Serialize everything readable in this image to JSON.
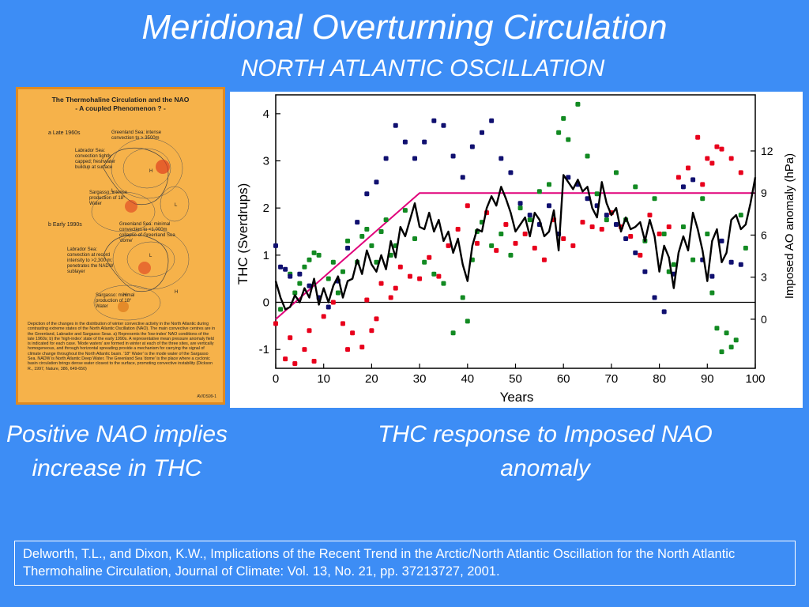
{
  "slide": {
    "title": "Meridional Overturning Circulation",
    "subtitle": "NORTH ATLANTIC OSCILLATION",
    "left_caption": "Positive NAO implies increase in THC",
    "right_caption": "THC response to  Imposed NAO anomaly",
    "reference": "Delworth, T.L., and Dixon, K.W., Implications of the Recent Trend in the Arctic/North Atlantic Oscillation for the  North Atlantic Thermohaline Circulation, Journal of Climate: Vol. 13, No. 21, pp. 37213727, 2001."
  },
  "poster": {
    "title_line1": "The Thermohaline Circulation and the NAO",
    "title_line2": "- A coupled Phenomenon ? -",
    "panel_a_label": "a  Late 1960s",
    "panel_a_greenland": "Greenland Sea: intense convection to > 3500m",
    "panel_a_labrador": "Labrador Sea: convection tightly capped; freshwater buildup at surface",
    "panel_a_sargasso": "Sargasso: intense production of 18° Water",
    "panel_b_label": "b  Early 1990s",
    "panel_b_greenland": "Greenland Sea: minimal convection to <1,000m collapse of Greenland Sea 'dome'",
    "panel_b_labrador": "Labrador Sea: convection at record intensity to >2,300 m; penetrates the NADW sublayer",
    "panel_b_sargasso": "Sargasso: minimal production of 18° Water",
    "description": "Depiction of the changes in the distribution of winter convective activity in the North Atlantic during contrasting extreme states of the North Atlantic Oscillation (NAO). The main convective centres are in the Greenland, Labrador and Sargasso Seas. a) Represents the 'low-index' NAO conditions of the late 1960s; b) the 'high-index' state of the early 1990s. A representative mean pressure anomaly field is indicated for each case. 'Mode waters' are formed in winter at each of the three sites, are vertically homogeneous, and through horizontal spreading provide a mechanism for carrying the signal of climate change throughout the North Atlantic basin. '18° Water' is the mode water of the Sargasso Sea. NADW is North Atlantic Deep Water. The Greenland Sea 'dome' is the place where a cyclonic basin circulation brings dense water closest to the surface, promoting convective instability (Dickson R., 1997, Nature, 386, 649-650)",
    "code": "AV/DS99-1",
    "map_a_high": "H",
    "map_a_low1": "L",
    "map_a_low2": "L",
    "map_b_low": "L",
    "map_b_high1": "H",
    "map_b_high2": "H"
  },
  "chart_data": {
    "type": "line",
    "xlabel": "Years",
    "ylabel": "THC (Sverdrups)",
    "y2label": "Imposed AO anomaly (hPa)",
    "xlim": [
      0,
      100
    ],
    "ylim": [
      -1.4,
      4.4
    ],
    "y2lim": [
      -3.5,
      16
    ],
    "xticks": [
      "0",
      "10",
      "20",
      "30",
      "40",
      "50",
      "60",
      "70",
      "80",
      "90",
      "100"
    ],
    "yticks": [
      "-1",
      "0",
      "1",
      "2",
      "3",
      "4"
    ],
    "y2ticks": [
      "0",
      "3",
      "6",
      "9",
      "12"
    ],
    "colors": {
      "thc": "#000000",
      "forcing": "#e0007a",
      "red": "#e8001c",
      "green": "#128a22",
      "navy": "#101070"
    },
    "imposed_anomaly": {
      "x": [
        0,
        30,
        100
      ],
      "y": [
        0,
        9,
        9
      ]
    },
    "thc_line": {
      "x": [
        0,
        1,
        2,
        3,
        4,
        5,
        6,
        7,
        8,
        9,
        10,
        11,
        12,
        13,
        14,
        15,
        16,
        17,
        18,
        19,
        20,
        21,
        22,
        23,
        24,
        25,
        26,
        27,
        28,
        29,
        30,
        31,
        32,
        33,
        34,
        35,
        36,
        37,
        38,
        39,
        40,
        41,
        42,
        43,
        44,
        45,
        46,
        47,
        48,
        49,
        50,
        51,
        52,
        53,
        54,
        55,
        56,
        57,
        58,
        59,
        60,
        61,
        62,
        63,
        64,
        65,
        66,
        67,
        68,
        69,
        70,
        71,
        72,
        73,
        74,
        75,
        76,
        77,
        78,
        79,
        80,
        81,
        82,
        83,
        84,
        85,
        86,
        87,
        88,
        89,
        90,
        91,
        92,
        93,
        94,
        95,
        96,
        97,
        98,
        99,
        100
      ],
      "y": [
        0.45,
        0.1,
        -0.15,
        -0.1,
        0.15,
        0.0,
        0.3,
        0.1,
        0.5,
        -0.05,
        0.3,
        0.0,
        0.35,
        0.55,
        0.1,
        0.45,
        0.5,
        0.9,
        0.6,
        1.1,
        0.8,
        0.65,
        1.0,
        0.7,
        1.3,
        0.95,
        1.6,
        1.4,
        1.75,
        2.1,
        1.6,
        1.55,
        1.9,
        1.5,
        1.75,
        1.3,
        1.5,
        1.05,
        1.35,
        0.8,
        0.45,
        1.2,
        1.55,
        1.5,
        2.0,
        2.25,
        2.05,
        2.45,
        2.2,
        1.9,
        1.5,
        1.65,
        1.8,
        1.4,
        1.9,
        1.75,
        1.4,
        1.5,
        1.95,
        1.1,
        2.7,
        2.55,
        2.4,
        2.6,
        2.35,
        2.45,
        2.0,
        1.8,
        2.55,
        2.1,
        1.85,
        2.0,
        1.5,
        1.8,
        1.55,
        1.6,
        1.7,
        1.3,
        1.75,
        1.4,
        0.65,
        1.2,
        0.95,
        0.3,
        1.05,
        1.4,
        1.1,
        1.9,
        1.55,
        1.1,
        0.45,
        1.3,
        1.55,
        0.85,
        1.05,
        1.75,
        1.85,
        1.55,
        1.65,
        2.1,
        2.65
      ]
    },
    "scatter_red": {
      "x": [
        0,
        2,
        3,
        4,
        6,
        7,
        8,
        10,
        12,
        14,
        15,
        16,
        18,
        19,
        20,
        21,
        22,
        24,
        25,
        26,
        28,
        30,
        32,
        34,
        36,
        38,
        40,
        42,
        44,
        46,
        48,
        50,
        52,
        54,
        56,
        58,
        60,
        62,
        64,
        66,
        68,
        70,
        72,
        74,
        76,
        78,
        80,
        82,
        84,
        86,
        88,
        89,
        90,
        91,
        92,
        93,
        95,
        97
      ],
      "y": [
        -0.45,
        -1.2,
        -0.75,
        -1.3,
        -1.0,
        -0.6,
        -1.25,
        -0.3,
        0.0,
        -0.45,
        -1.0,
        -0.65,
        -0.95,
        0.05,
        -0.6,
        -0.35,
        0.4,
        0.1,
        0.3,
        0.75,
        0.55,
        0.5,
        0.95,
        0.55,
        1.2,
        1.55,
        2.05,
        1.25,
        1.9,
        1.1,
        1.65,
        1.25,
        1.45,
        1.15,
        0.9,
        1.75,
        1.35,
        1.2,
        1.7,
        1.6,
        1.55,
        1.9,
        1.6,
        1.4,
        1.0,
        1.85,
        1.45,
        1.6,
        2.65,
        2.85,
        3.5,
        2.5,
        3.05,
        2.95,
        3.3,
        3.25,
        3.05,
        2.75
      ]
    },
    "scatter_green": {
      "x": [
        1,
        3,
        4,
        5,
        6,
        7,
        8,
        9,
        11,
        12,
        13,
        14,
        15,
        17,
        18,
        19,
        20,
        21,
        22,
        23,
        24,
        25,
        27,
        29,
        31,
        33,
        35,
        37,
        39,
        40,
        41,
        42,
        43,
        45,
        47,
        49,
        51,
        53,
        55,
        57,
        59,
        60,
        61,
        63,
        65,
        67,
        69,
        71,
        73,
        75,
        77,
        79,
        81,
        82,
        83,
        85,
        87,
        89,
        90,
        91,
        92,
        93,
        94,
        95,
        96,
        97,
        98
      ],
      "y": [
        -0.15,
        0.6,
        0.2,
        0.4,
        0.75,
        0.9,
        1.05,
        1.0,
        0.5,
        0.85,
        0.2,
        0.65,
        1.3,
        0.85,
        1.4,
        1.55,
        1.2,
        0.85,
        1.5,
        1.75,
        1.0,
        1.2,
        1.95,
        1.35,
        0.85,
        0.6,
        0.4,
        -0.65,
        0.1,
        -0.4,
        0.9,
        1.5,
        1.7,
        1.2,
        1.45,
        1.0,
        2.0,
        1.75,
        2.35,
        2.5,
        3.6,
        3.9,
        3.45,
        4.2,
        3.1,
        2.3,
        1.75,
        2.75,
        1.75,
        2.45,
        1.3,
        2.2,
        1.45,
        0.65,
        0.8,
        1.6,
        0.9,
        2.2,
        1.45,
        0.2,
        -0.55,
        -1.05,
        -0.65,
        -0.95,
        -0.8,
        1.85,
        1.15
      ]
    },
    "scatter_navy": {
      "x": [
        0,
        1,
        2,
        3,
        5,
        7,
        9,
        11,
        13,
        15,
        17,
        19,
        21,
        23,
        25,
        27,
        29,
        31,
        33,
        35,
        37,
        39,
        41,
        43,
        45,
        47,
        49,
        51,
        53,
        55,
        57,
        59,
        61,
        63,
        65,
        67,
        69,
        71,
        73,
        75,
        77,
        79,
        81,
        83,
        85,
        87,
        89,
        91,
        93,
        95,
        97
      ],
      "y": [
        1.2,
        0.75,
        0.7,
        0.55,
        0.6,
        0.35,
        0.1,
        -0.1,
        0.45,
        1.15,
        1.7,
        2.3,
        2.55,
        3.05,
        3.75,
        3.4,
        3.05,
        3.4,
        3.85,
        3.75,
        3.1,
        2.65,
        3.3,
        3.6,
        3.85,
        3.05,
        2.75,
        2.1,
        1.85,
        1.65,
        2.05,
        1.45,
        2.65,
        2.5,
        2.2,
        2.05,
        1.85,
        1.65,
        1.35,
        1.05,
        0.65,
        0.1,
        -0.2,
        0.6,
        2.45,
        2.6,
        0.9,
        0.55,
        1.3,
        0.85,
        0.8
      ]
    }
  }
}
